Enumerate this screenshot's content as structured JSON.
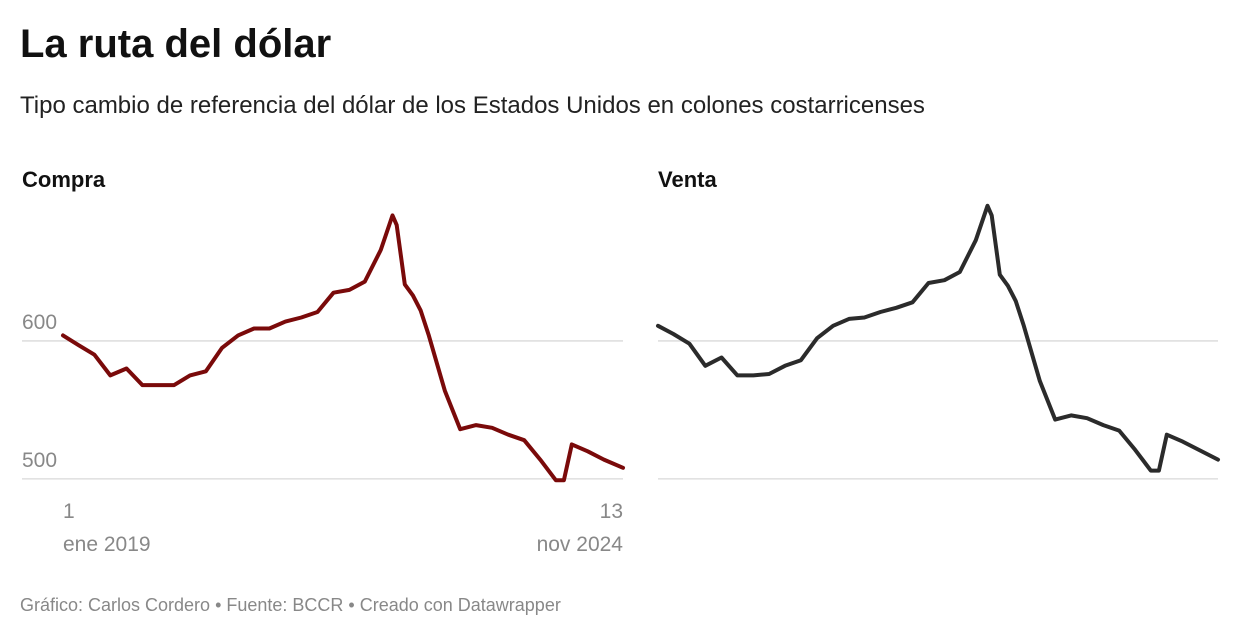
{
  "title": "La ruta del dólar",
  "subtitle": "Tipo cambio de referencia del dólar de los Estados Unidos en colones costarricenses",
  "footer": "Gráfico: Carlos Cordero • Fuente: BCCR • Creado con Datawrapper",
  "chart_data": [
    {
      "type": "line",
      "title": "Compra",
      "color": "#7a0a0a",
      "x": [
        "2019-01-01",
        "2019-03-01",
        "2019-05-01",
        "2019-07-01",
        "2019-09-01",
        "2019-11-01",
        "2020-01-01",
        "2020-03-01",
        "2020-05-01",
        "2020-07-01",
        "2020-09-01",
        "2020-11-01",
        "2021-01-01",
        "2021-03-01",
        "2021-05-01",
        "2021-07-01",
        "2021-09-01",
        "2021-11-01",
        "2022-01-01",
        "2022-03-01",
        "2022-05-01",
        "2022-06-15",
        "2022-07-01",
        "2022-08-01",
        "2022-09-01",
        "2022-10-01",
        "2022-11-01",
        "2023-01-01",
        "2023-03-01",
        "2023-05-01",
        "2023-07-01",
        "2023-09-01",
        "2023-11-01",
        "2024-01-01",
        "2024-03-01",
        "2024-04-01",
        "2024-05-01",
        "2024-07-01",
        "2024-09-01",
        "2024-11-13"
      ],
      "values": [
        604,
        597,
        590,
        575,
        580,
        568,
        568,
        568,
        575,
        578,
        595,
        604,
        609,
        609,
        614,
        617,
        621,
        635,
        637,
        643,
        666,
        691,
        684,
        641,
        633,
        622,
        604,
        564,
        536,
        539,
        537,
        532,
        528,
        514,
        499,
        499,
        525,
        520,
        514,
        508
      ],
      "xlim": [
        "2019-01-01",
        "2024-11-13"
      ],
      "xticks": [
        {
          "value": "2019-01-01",
          "label": "1\nene 2019"
        },
        {
          "value": "2024-11-13",
          "label": "13\nnov 2024"
        }
      ],
      "ylim": [
        497,
        700
      ],
      "yticks": [
        500,
        600
      ],
      "ytick_labels": true,
      "grid": true
    },
    {
      "type": "line",
      "title": "Venta",
      "color": "#2b2b2b",
      "x": [
        "2019-01-01",
        "2019-03-01",
        "2019-05-01",
        "2019-07-01",
        "2019-09-01",
        "2019-11-01",
        "2020-01-01",
        "2020-03-01",
        "2020-05-01",
        "2020-07-01",
        "2020-09-01",
        "2020-11-01",
        "2021-01-01",
        "2021-03-01",
        "2021-05-01",
        "2021-07-01",
        "2021-09-01",
        "2021-11-01",
        "2022-01-01",
        "2022-03-01",
        "2022-05-01",
        "2022-06-15",
        "2022-07-01",
        "2022-08-01",
        "2022-09-01",
        "2022-10-01",
        "2022-11-01",
        "2023-01-01",
        "2023-03-01",
        "2023-05-01",
        "2023-07-01",
        "2023-09-01",
        "2023-11-01",
        "2024-01-01",
        "2024-03-01",
        "2024-04-01",
        "2024-05-01",
        "2024-07-01",
        "2024-09-01",
        "2024-11-13"
      ],
      "values": [
        611,
        605,
        598,
        582,
        588,
        575,
        575,
        576,
        582,
        586,
        602,
        611,
        616,
        617,
        621,
        624,
        628,
        642,
        644,
        650,
        673,
        698,
        691,
        648,
        640,
        629,
        611,
        571,
        543,
        546,
        544,
        539,
        535,
        521,
        506,
        506,
        532,
        527,
        521,
        514
      ],
      "xlim": [
        "2019-01-01",
        "2024-11-13"
      ],
      "ylim": [
        497,
        700
      ],
      "yticks": [
        500,
        600
      ],
      "ytick_labels": false,
      "grid": true
    }
  ]
}
